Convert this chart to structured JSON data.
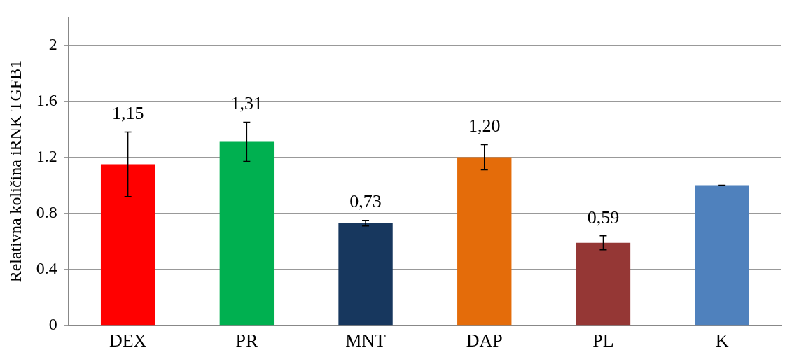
{
  "chart_data": {
    "type": "bar",
    "ylabel": "Relativna količina iRNK TGFB1",
    "categories": [
      "DEX",
      "PR",
      "MNT",
      "DAP",
      "PL",
      "K"
    ],
    "values": [
      1.15,
      1.31,
      0.73,
      1.2,
      0.59,
      1.0
    ],
    "colors": [
      "#ff0000",
      "#00b050",
      "#17375e",
      "#e46c0a",
      "#953735",
      "#4f81bd"
    ],
    "errors": [
      0.23,
      0.14,
      0.02,
      0.09,
      0.05,
      0
    ],
    "value_labels": [
      "1,15",
      "1,31",
      "0,73",
      "1,20",
      "0,59",
      null
    ],
    "ylim": [
      0,
      2.2
    ],
    "yticks": [
      0,
      0.4,
      0.8,
      1.2,
      1.6,
      2
    ],
    "grid": "y",
    "legend": false
  }
}
